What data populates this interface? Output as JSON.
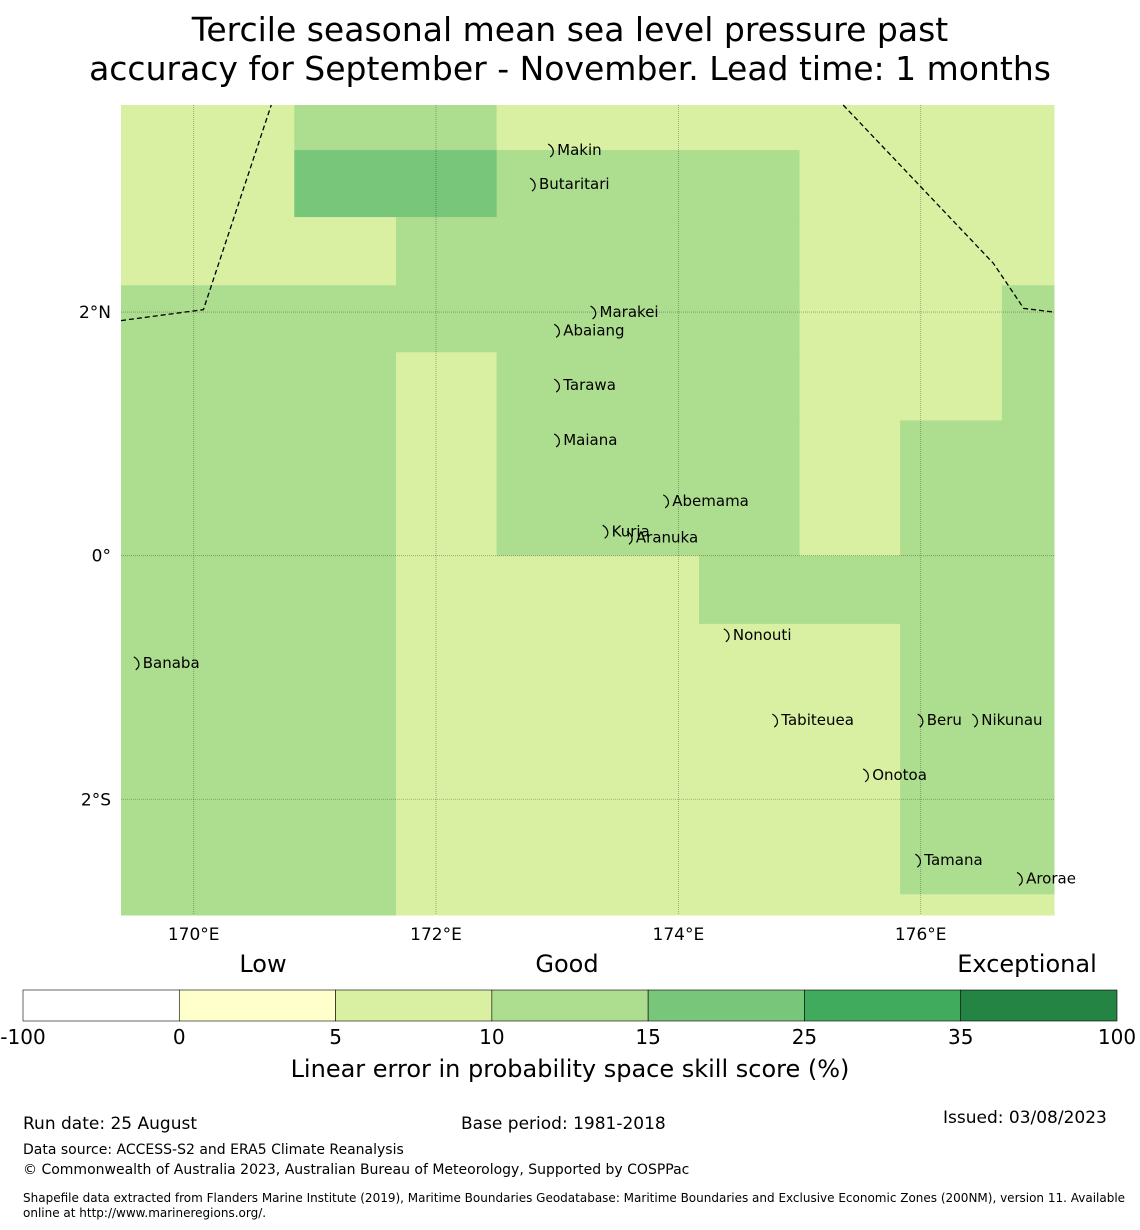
{
  "title_line1": "Tercile seasonal mean sea level pressure past",
  "title_line2": "accuracy for September - November. Lead time: 1 months",
  "map": {
    "lon_range": [
      169.4,
      177.1
    ],
    "lat_range": [
      -2.95,
      3.7
    ],
    "lon_ticks": [
      170,
      172,
      174,
      176
    ],
    "lon_tick_labels": [
      "170°E",
      "172°E",
      "174°E",
      "176°E"
    ],
    "lat_ticks": [
      2,
      0,
      -2
    ],
    "lat_tick_labels": [
      "2°N",
      "0°",
      "2°S"
    ],
    "grid": true,
    "grid_lon_edges": [
      169.4,
      170.83,
      171.67,
      172.5,
      173.33,
      174.17,
      175.0,
      175.83,
      176.67,
      177.1
    ],
    "grid_lat_edges": [
      3.7,
      3.33,
      2.78,
      2.22,
      1.67,
      1.11,
      0.56,
      0.0,
      -0.56,
      -1.11,
      -1.67,
      -2.22,
      -2.78,
      -2.95
    ],
    "cell_classes": [
      [
        2,
        3,
        3,
        2,
        2,
        2,
        2,
        2,
        2
      ],
      [
        2,
        4,
        4,
        3,
        3,
        3,
        2,
        2,
        2
      ],
      [
        2,
        2,
        3,
        3,
        3,
        3,
        2,
        2,
        2
      ],
      [
        3,
        3,
        3,
        3,
        3,
        3,
        2,
        2,
        3
      ],
      [
        3,
        3,
        2,
        3,
        3,
        3,
        2,
        2,
        3
      ],
      [
        3,
        3,
        2,
        3,
        3,
        3,
        2,
        3,
        3
      ],
      [
        3,
        3,
        2,
        3,
        3,
        3,
        2,
        3,
        3
      ],
      [
        3,
        3,
        2,
        2,
        2,
        3,
        3,
        3,
        3
      ],
      [
        3,
        3,
        2,
        2,
        2,
        2,
        2,
        3,
        3
      ],
      [
        3,
        3,
        2,
        2,
        2,
        2,
        2,
        3,
        3
      ],
      [
        3,
        3,
        2,
        2,
        2,
        2,
        2,
        3,
        3
      ],
      [
        3,
        3,
        2,
        2,
        2,
        2,
        2,
        3,
        3
      ],
      [
        3,
        3,
        2,
        2,
        2,
        2,
        2,
        2,
        2
      ]
    ],
    "islands": [
      {
        "name": "Makin",
        "lon": 172.95,
        "lat": 3.33
      },
      {
        "name": "Butaritari",
        "lon": 172.8,
        "lat": 3.05
      },
      {
        "name": "Marakei",
        "lon": 173.3,
        "lat": 2.0
      },
      {
        "name": "Abaiang",
        "lon": 173.0,
        "lat": 1.85
      },
      {
        "name": "Tarawa",
        "lon": 173.0,
        "lat": 1.4
      },
      {
        "name": "Maiana",
        "lon": 173.0,
        "lat": 0.95
      },
      {
        "name": "Abemama",
        "lon": 173.9,
        "lat": 0.45
      },
      {
        "name": "Kuria",
        "lon": 173.4,
        "lat": 0.2
      },
      {
        "name": "Aranuka",
        "lon": 173.6,
        "lat": 0.15
      },
      {
        "name": "Nonouti",
        "lon": 174.4,
        "lat": -0.65
      },
      {
        "name": "Banaba",
        "lon": 169.53,
        "lat": -0.88
      },
      {
        "name": "Tabiteuea",
        "lon": 174.8,
        "lat": -1.35
      },
      {
        "name": "Beru",
        "lon": 176.0,
        "lat": -1.35
      },
      {
        "name": "Nikunau",
        "lon": 176.45,
        "lat": -1.35
      },
      {
        "name": "Onotoa",
        "lon": 175.55,
        "lat": -1.8
      },
      {
        "name": "Tamana",
        "lon": 175.98,
        "lat": -2.5
      },
      {
        "name": "Arorae",
        "lon": 176.82,
        "lat": -2.65
      }
    ],
    "boundaries": [
      [
        [
          169.4,
          1.93
        ],
        [
          170.08,
          2.02
        ],
        [
          170.64,
          3.7
        ]
      ],
      [
        [
          175.36,
          3.7
        ],
        [
          176.6,
          2.4
        ],
        [
          176.85,
          2.03
        ],
        [
          177.1,
          2.0
        ]
      ]
    ]
  },
  "colorbar": {
    "category_labels": [
      "Low",
      "Good",
      "Exceptional"
    ],
    "tick_labels": [
      "-100",
      "0",
      "5",
      "10",
      "15",
      "25",
      "35",
      "100"
    ],
    "colors": [
      "#ffffff",
      "#ffffcc",
      "#d9f0a3",
      "#addd8e",
      "#78c679",
      "#41ab5d",
      "#238443"
    ],
    "label": "Linear error in probability space skill score (%)"
  },
  "footer": {
    "run_date": "Run date: 25 August",
    "base_period": "Base period: 1981-2018",
    "issued": "Issued: 03/08/2023",
    "data_source": "Data source: ACCESS-S2 and ERA5 Climate Reanalysis",
    "copyright": "© Commonwealth of Australia 2023, Australian Bureau of Meteorology, Supported by COSPPac",
    "shapefile_line1": "Shapefile data extracted from Flanders Marine Institute (2019), Maritime Boundaries Geodatabase: Maritime Boundaries and Exclusive Economic Zones (200NM), version 11. Available",
    "shapefile_line2": "online at http://www.marineregions.org/."
  }
}
